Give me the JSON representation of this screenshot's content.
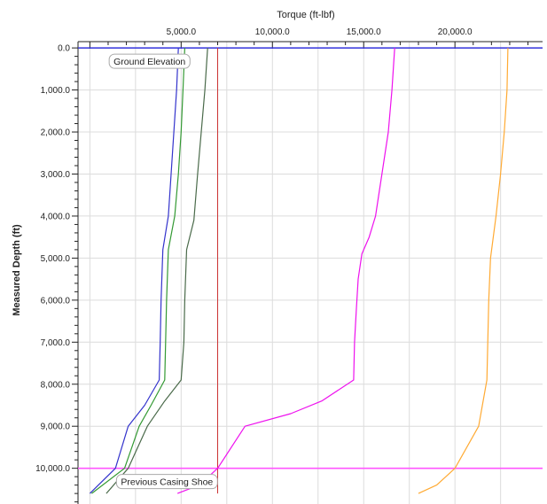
{
  "chart_data": {
    "type": "line",
    "xlabel": "Torque (ft-lbf)",
    "ylabel": "Measured Depth (ft)",
    "x_axis_position": "top",
    "y_inverted": true,
    "xlim": [
      -650,
      24800
    ],
    "ylim": [
      -150,
      10850
    ],
    "x_ticks": [
      {
        "value": 5000,
        "label": "5,000.0"
      },
      {
        "value": 10000,
        "label": "10,000.0"
      },
      {
        "value": 15000,
        "label": "15,000.0"
      },
      {
        "value": 20000,
        "label": "20,000.0"
      }
    ],
    "y_ticks": [
      {
        "value": 0,
        "label": "0.0"
      },
      {
        "value": 1000,
        "label": "1,000.0"
      },
      {
        "value": 2000,
        "label": "2,000.0"
      },
      {
        "value": 3000,
        "label": "3,000.0"
      },
      {
        "value": 4000,
        "label": "4,000.0"
      },
      {
        "value": 5000,
        "label": "5,000.0"
      },
      {
        "value": 6000,
        "label": "6,000.0"
      },
      {
        "value": 7000,
        "label": "7,000.0"
      },
      {
        "value": 8000,
        "label": "8,000.0"
      },
      {
        "value": 9000,
        "label": "9,000.0"
      },
      {
        "value": 10000,
        "label": "10,000.0"
      }
    ],
    "grid": true,
    "series": [
      {
        "color": "#3333cc",
        "points": [
          [
            4850,
            0
          ],
          [
            4750,
            1000
          ],
          [
            4600,
            2000
          ],
          [
            4450,
            3000
          ],
          [
            4300,
            4000
          ],
          [
            4000,
            4800
          ],
          [
            3900,
            6000
          ],
          [
            3850,
            7000
          ],
          [
            3800,
            7900
          ],
          [
            3000,
            8500
          ],
          [
            2100,
            9000
          ],
          [
            1400,
            10000
          ],
          [
            0,
            10600
          ]
        ]
      },
      {
        "color": "#339933",
        "points": [
          [
            5200,
            0
          ],
          [
            5100,
            1000
          ],
          [
            5000,
            2000
          ],
          [
            4850,
            3000
          ],
          [
            4650,
            4000
          ],
          [
            4300,
            4800
          ],
          [
            4200,
            6000
          ],
          [
            4150,
            7000
          ],
          [
            4100,
            7900
          ],
          [
            3350,
            8500
          ],
          [
            2700,
            9000
          ],
          [
            1900,
            10000
          ],
          [
            100,
            10600
          ]
        ]
      },
      {
        "color": "#4a6a4a",
        "points": [
          [
            6450,
            0
          ],
          [
            6300,
            1000
          ],
          [
            6100,
            2000
          ],
          [
            5900,
            3000
          ],
          [
            5700,
            4100
          ],
          [
            5300,
            4800
          ],
          [
            5200,
            6000
          ],
          [
            5150,
            7000
          ],
          [
            5000,
            7900
          ],
          [
            4100,
            8400
          ],
          [
            3150,
            9000
          ],
          [
            2100,
            10000
          ],
          [
            900,
            10600
          ]
        ]
      },
      {
        "color": "#ee11ee",
        "points": [
          [
            16700,
            0
          ],
          [
            16550,
            1000
          ],
          [
            16350,
            2000
          ],
          [
            16000,
            3000
          ],
          [
            15650,
            4000
          ],
          [
            15300,
            4500
          ],
          [
            14900,
            4900
          ],
          [
            14700,
            5500
          ],
          [
            14600,
            6200
          ],
          [
            14500,
            7000
          ],
          [
            14450,
            7900
          ],
          [
            12700,
            8400
          ],
          [
            11000,
            8700
          ],
          [
            8500,
            9000
          ],
          [
            7000,
            10000
          ],
          [
            6000,
            10400
          ],
          [
            4800,
            10600
          ]
        ]
      },
      {
        "color": "#ffaa33",
        "points": [
          [
            22900,
            0
          ],
          [
            22850,
            1000
          ],
          [
            22700,
            2000
          ],
          [
            22500,
            3000
          ],
          [
            22250,
            4000
          ],
          [
            21950,
            5000
          ],
          [
            21850,
            6000
          ],
          [
            21800,
            7000
          ],
          [
            21750,
            7900
          ],
          [
            21300,
            9000
          ],
          [
            20000,
            10000
          ],
          [
            19000,
            10400
          ],
          [
            18000,
            10600
          ]
        ]
      }
    ],
    "reference_lines": [
      {
        "orientation": "horizontal",
        "value": 0,
        "color": "#3333dd",
        "label": "Ground Elevation",
        "label_x": 1300
      },
      {
        "orientation": "horizontal",
        "value": 10000,
        "color": "#ff55ff",
        "label": "Previous Casing Shoe",
        "label_x": 1700
      },
      {
        "orientation": "vertical",
        "value": 7000,
        "color": "#cc3333",
        "extent": [
          0,
          10600
        ]
      }
    ]
  }
}
